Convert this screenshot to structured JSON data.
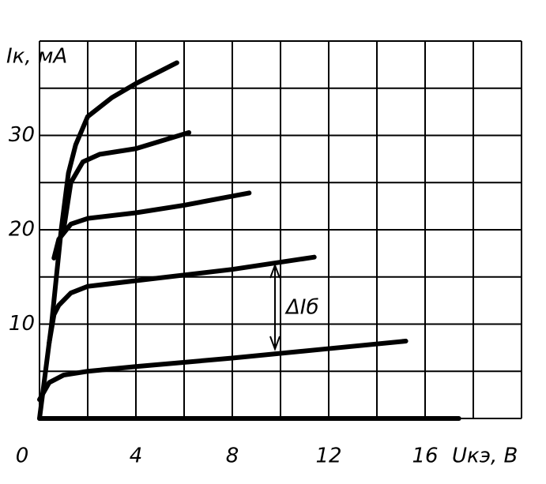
{
  "chart_data": {
    "type": "line",
    "y_label": "Iк, мА",
    "x_label": "Uкэ, В",
    "annotation": "ΔIб",
    "xlim": [
      0,
      20
    ],
    "ylim": [
      0,
      40
    ],
    "xticks": [
      0,
      4,
      8,
      12,
      16
    ],
    "yticks": [
      10,
      20,
      30
    ],
    "xgrid": [
      0,
      2,
      4,
      6,
      8,
      10,
      12,
      14,
      16,
      18,
      20
    ],
    "ygrid": [
      0,
      5,
      10,
      15,
      20,
      25,
      30,
      35,
      40
    ],
    "grid": true,
    "series": [
      {
        "color": "#000000",
        "x": [
          0,
          17.4
        ],
        "values": [
          0,
          0
        ]
      },
      {
        "color": "#000000",
        "x": [
          0,
          0.4,
          1,
          2,
          4,
          8,
          12,
          15.2
        ],
        "values": [
          2,
          3.8,
          4.6,
          5,
          5.5,
          6.4,
          7.4,
          8.2
        ]
      },
      {
        "color": "#000000",
        "x": [
          0.4,
          0.6,
          0.8,
          1.3,
          2,
          4,
          8,
          11.4
        ],
        "values": [
          8,
          11,
          12,
          13.3,
          14,
          14.6,
          15.8,
          17.1
        ]
      },
      {
        "color": "#000000",
        "x": [
          0.6,
          0.8,
          1.3,
          2,
          4,
          6,
          8.7
        ],
        "values": [
          17,
          19,
          20.6,
          21.2,
          21.8,
          22.6,
          23.9
        ]
      },
      {
        "color": "#000000",
        "x": [
          1,
          1.3,
          1.8,
          2.5,
          4,
          6.2
        ],
        "values": [
          20,
          25,
          27.2,
          28,
          28.6,
          30.3
        ]
      },
      {
        "color": "#000000",
        "x": [
          0,
          0.5,
          0.9,
          1.2,
          1.5,
          2,
          3,
          4,
          5.7
        ],
        "values": [
          0,
          10,
          20,
          26,
          29,
          32,
          34,
          35.5,
          37.7
        ]
      }
    ]
  }
}
